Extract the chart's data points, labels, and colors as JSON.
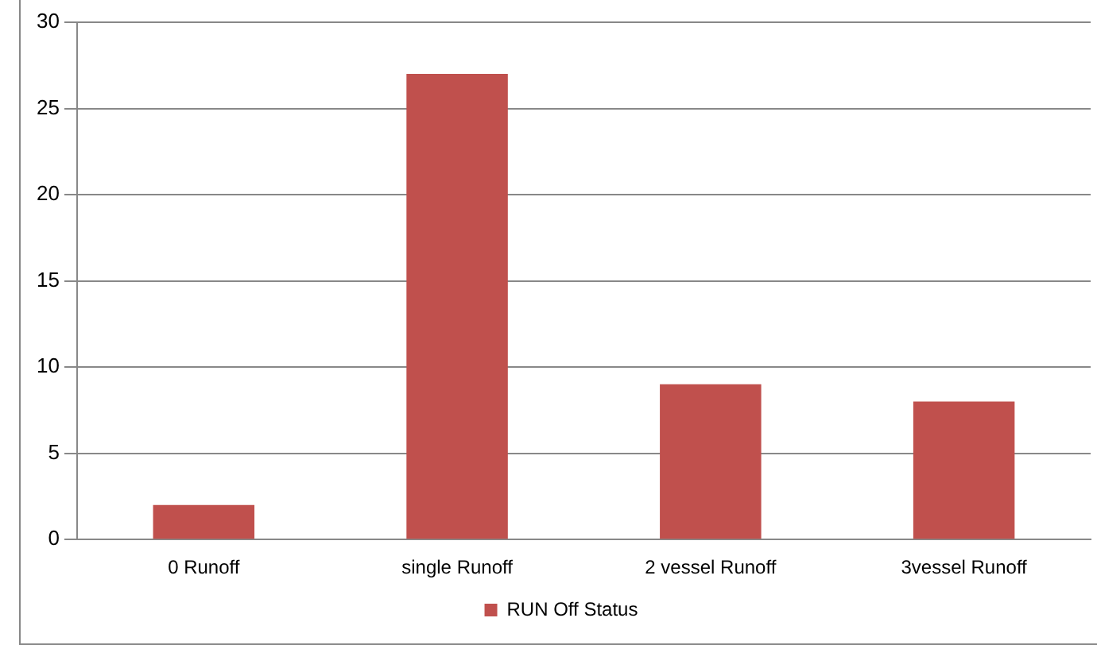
{
  "chart_data": {
    "type": "bar",
    "categories": [
      "0 Runoff",
      "single Runoff",
      "2 vessel Runoff",
      "3vessel Runoff"
    ],
    "series": [
      {
        "name": "RUN Off Status",
        "color": "#c0504d",
        "values": [
          2,
          27,
          9,
          8
        ]
      }
    ],
    "ylim": [
      0,
      30
    ],
    "yticks": [
      0,
      5,
      10,
      15,
      20,
      25,
      30
    ],
    "grid": "y",
    "legend": "bottom"
  }
}
